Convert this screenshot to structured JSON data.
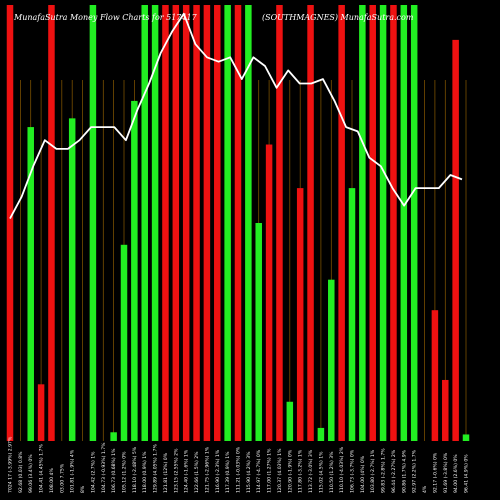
{
  "chart_data": {
    "type": "bar",
    "title_left": "MunafaSutra Money Flow Charts for 517417",
    "title_right": "(SOUTHMAGNES) MunafaSutra.com",
    "xlabel": "",
    "ylabel": "",
    "grid": "vertical",
    "legend": "none",
    "y_range": [
      0,
      100
    ],
    "categories": [
      "7024 17 (-3.99%) 2.97%",
      "92.68 (0.03) 0.8%",
      "99.06 (3.4%) 0%",
      "104.41 (4.45%) 1.7%",
      "108.00 4%",
      "03.00 7.75%",
      "101.81 (-1.9%) 4%",
      "8%",
      "104.42 (2.7%) 1%",
      "104.73 (-0.93%) 1.7%",
      "106.73 (0.68%) 1%",
      "105.12 (1.2%) 0%",
      "118.10 (-2.48%) 5%",
      "118.00 (0.9%) 1%",
      "129.89 (4.05%) 1.7%",
      "121.81 (12%) 0%",
      "123.15 (2.55%) 2%",
      "124.40 (-1.6%) 1%",
      "122.66 (1.5%) 2%",
      "121.75 (-2.96%) 1%",
      "116.90 (-2.3%) 1%",
      "117.39 (0.9%) 1%",
      "111.21 (-0.03%) 0%",
      "115.90 (4.2%) 3%",
      "114.97 (-4.7%) 0%",
      "117.00 (1.27%) 1%",
      "120.37 (4.03%) 1%",
      "120.90 (-1.9%) 0%",
      "117.80 (-3.2%) 1%",
      "113.72 (-3.0%) 3%",
      "115.02 (4.5%) 1%",
      "110.50 (1.2%) 3%",
      "110.10 (-4.03%) 2%",
      "106.73 (-3.7%) 0%",
      "104.00 (4%) 0%",
      "103.80 (-2.7%) 1%",
      "99.83 (-2.8%) 1.7%",
      "96.44 (-2.27%) 2%",
      "90.86 (1.7%) 4.9%",
      "92.97 (2.2%) 1.7%",
      "4%",
      "92.17 (-0.6%) 0%",
      "91.69 (-3.8%) 0%",
      "94.00 (2.6%) 0%",
      "96.41 (4.9%) 0%"
    ],
    "bar_heights": [
      100,
      0,
      72,
      13,
      100,
      0,
      74,
      0,
      100,
      0,
      2,
      45,
      78,
      100,
      100,
      100,
      100,
      100,
      100,
      100,
      100,
      100,
      100,
      100,
      50,
      68,
      100,
      9,
      58,
      100,
      3,
      37,
      100,
      58,
      100,
      100,
      100,
      100,
      100,
      100,
      0,
      30,
      14,
      92,
      1.5
    ],
    "bar_colors": [
      "r",
      "r",
      "g",
      "r",
      "r",
      "r",
      "g",
      "g",
      "g",
      "g",
      "g",
      "g",
      "g",
      "g",
      "g",
      "r",
      "r",
      "r",
      "r",
      "r",
      "r",
      "g",
      "r",
      "g",
      "g",
      "r",
      "r",
      "g",
      "r",
      "r",
      "g",
      "g",
      "r",
      "g",
      "g",
      "r",
      "g",
      "r",
      "g",
      "g",
      "g",
      "r",
      "r",
      "r",
      "g"
    ],
    "line_values": [
      51,
      56,
      63,
      69,
      67,
      67,
      69,
      72,
      72,
      72,
      69,
      76,
      82,
      89,
      94,
      98,
      91,
      88,
      87,
      88,
      83,
      88,
      86,
      81,
      85,
      82,
      82,
      83,
      78,
      72,
      71,
      65,
      63,
      58,
      54,
      58,
      58,
      58,
      61,
      60
    ],
    "colors": {
      "up": "#22ee22",
      "down": "#ee1111",
      "line": "#ffffff",
      "grid": "#8a5a00",
      "background": "#000000"
    }
  }
}
